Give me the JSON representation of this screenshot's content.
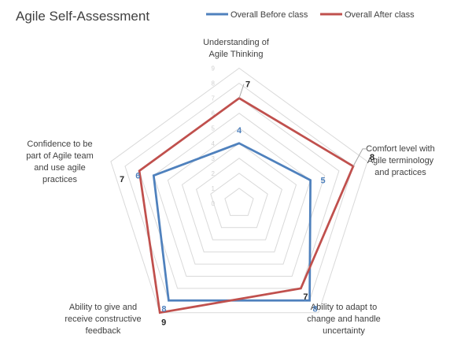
{
  "chart_data": {
    "type": "radar",
    "title": "Agile Self-Assessment",
    "categories": [
      "Understanding of Agile Thinking",
      "Comfort level with Agile terminology and practices",
      "Ability to adapt to change and handle uncertainty",
      "Ability to give and receive constructive feedback",
      "Confidence to be part of Agile team and use agile practices"
    ],
    "category_lines": [
      [
        "Understanding of",
        "Agile Thinking"
      ],
      [
        "Comfort level with",
        "Agile terminology",
        "and practices"
      ],
      [
        "Ability to adapt to",
        "change and handle",
        "uncertainty"
      ],
      [
        "Ability to give and",
        "receive constructive",
        "feedback"
      ],
      [
        "Confidence to be",
        "part of Agile team",
        "and use agile",
        "practices"
      ]
    ],
    "series": [
      {
        "name": "Overall Before class",
        "color": "#4f81bd",
        "values": [
          4,
          5,
          8,
          8,
          6
        ]
      },
      {
        "name": "Overall After class",
        "color": "#c0504d",
        "values": [
          7,
          8,
          7,
          9,
          7
        ]
      }
    ],
    "radial_axis": {
      "min": 0,
      "max": 9,
      "step": 1,
      "ticks": [
        "0",
        "1",
        "2",
        "3",
        "4",
        "5",
        "6",
        "7",
        "8",
        "9"
      ]
    },
    "legend_position": "top-right",
    "grid": true
  }
}
